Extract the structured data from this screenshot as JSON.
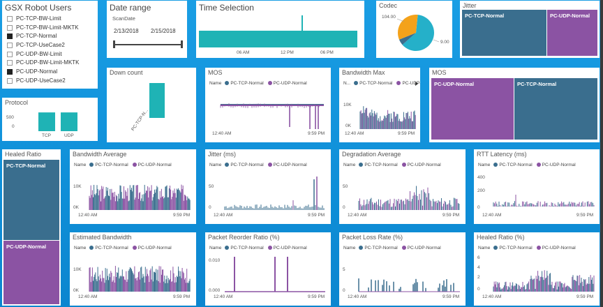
{
  "colors": {
    "teal": "#3a6e8e",
    "purple": "#8b53a3",
    "bright_teal": "#1fb3b5",
    "orange": "#f4a21a",
    "cyan": "#25b0c9"
  },
  "robot_users": {
    "title": "GSX Robot Users",
    "items": [
      {
        "label": "PC-TCP-BW-Limit",
        "checked": false
      },
      {
        "label": "PC-TCP-BW-Limit-MKTK",
        "checked": false
      },
      {
        "label": "PC-TCP-Normal",
        "checked": true
      },
      {
        "label": "PC-TCP-UseCase2",
        "checked": false
      },
      {
        "label": "PC-UDP-BW-Limit",
        "checked": false
      },
      {
        "label": "PC-UDP-BW-Limit-MKTK",
        "checked": false
      },
      {
        "label": "PC-UDP-Normal",
        "checked": true
      },
      {
        "label": "PC-UDP-UseCase2",
        "checked": false
      }
    ]
  },
  "date_range": {
    "title": "Date range",
    "field": "ScanDate",
    "start": "2/13/2018",
    "end": "2/15/2018",
    "slider_start": 0.0,
    "slider_end": 1.0
  },
  "time_selection": {
    "title": "Time Selection",
    "ticks": [
      "06 AM",
      "12 PM",
      "06 PM"
    ]
  },
  "codec": {
    "title": "Codec",
    "label_a": "104.00",
    "label_b": "9.00",
    "slices": [
      104,
      9,
      55
    ]
  },
  "jitter_tree": {
    "title": "Jitter",
    "a": "PC-TCP-Normal",
    "b": "PC-UDP-Normal"
  },
  "protocol": {
    "title": "Protocol",
    "y_tick": "500",
    "y_zero": "0",
    "categories": [
      "TCP",
      "UDP"
    ],
    "values": [
      560,
      560
    ]
  },
  "down_count": {
    "title": "Down count",
    "category": "PC-TCP-N...",
    "value": 1
  },
  "mos_line": {
    "title": "MOS"
  },
  "bandwidth_max": {
    "title": "Bandwidth Max",
    "legend_name": "N...",
    "y_tick": "10K",
    "y_zero": "0K"
  },
  "mos_tree": {
    "title": "MOS",
    "a": "PC-UDP-Normal",
    "b": "PC-TCP-Normal"
  },
  "healed_tree": {
    "title": "Healed Ratio",
    "a": "PC-TCP-Normal",
    "b": "PC-UDP-Normal"
  },
  "legend": {
    "name": "Name",
    "a": "PC-TCP-Normal",
    "b": "PC-UDP-Normal"
  },
  "x_axis": {
    "start": "12:40 AM",
    "end": "9:59 PM"
  },
  "bandwidth_avg": {
    "title": "Bandwidth Average",
    "y_tick": "10K",
    "y_zero": "0K"
  },
  "jitter_ms": {
    "title": "Jitter (ms)",
    "y_tick": "50",
    "y_zero": "0"
  },
  "degradation": {
    "title": "Degradation Average",
    "y_tick": "50",
    "y_zero": "0"
  },
  "rtt": {
    "title": "RTT Latency (ms)",
    "y_top": "400",
    "y_mid": "200",
    "y_zero": "0"
  },
  "est_bandwidth": {
    "title": "Estimated Bandwidth",
    "y_tick": "10K",
    "y_zero": "0K"
  },
  "reorder": {
    "title": "Packet Reorder Ratio (%)",
    "y_top": "0.010",
    "y_zero": "0.000"
  },
  "packet_loss": {
    "title": "Packet Loss Rate (%)",
    "y_tick": "5",
    "y_zero": "0"
  },
  "healed_ratio": {
    "title": "Healed Ratio (%)",
    "y_top": "6",
    "y_mid1": "4",
    "y_mid2": "2",
    "y_zero": "0"
  },
  "chart_data": [
    {
      "type": "bar",
      "title": "Protocol",
      "categories": [
        "TCP",
        "UDP"
      ],
      "values": [
        560,
        560
      ]
    },
    {
      "type": "bar",
      "title": "Down count",
      "categories": [
        "PC-TCP-N..."
      ],
      "values": [
        1
      ]
    },
    {
      "type": "pie",
      "title": "Codec",
      "values": [
        104,
        9,
        55
      ],
      "labels": [
        "104.00",
        "9.00",
        ""
      ]
    }
  ]
}
